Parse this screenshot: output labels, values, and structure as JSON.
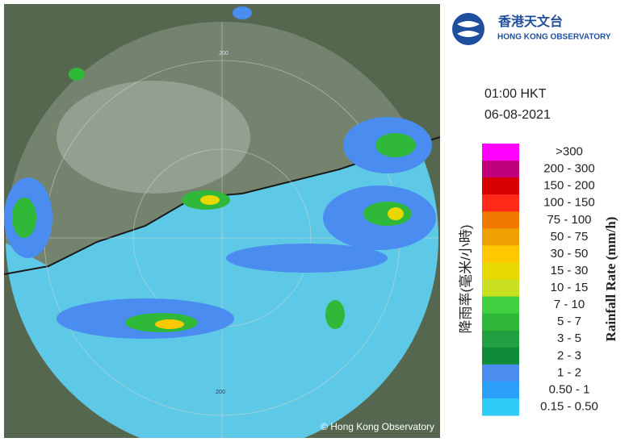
{
  "header": {
    "logo_chinese": "香港天文台",
    "logo_english": "HONG KONG OBSERVATORY"
  },
  "timestamp": {
    "time": "01:00 HKT",
    "date": "06-08-2021"
  },
  "map": {
    "ring_labels": [
      "200",
      "200"
    ],
    "copyright": "© Hong Kong Observatory"
  },
  "legend": {
    "title_chinese": "降雨率(毫米/小時)",
    "title_english": "Rainfall Rate (mm/h)",
    "items": [
      {
        "label": ">300",
        "color": "#ff00ff"
      },
      {
        "label": "200 - 300",
        "color": "#c0007a"
      },
      {
        "label": "150 - 200",
        "color": "#d80000"
      },
      {
        "label": "100 - 150",
        "color": "#ff2a1a"
      },
      {
        "label": "75 - 100",
        "color": "#f07800"
      },
      {
        "label": "50 - 75",
        "color": "#f0a000"
      },
      {
        "label": "30 - 50",
        "color": "#ffc800"
      },
      {
        "label": "15 - 30",
        "color": "#e8d800"
      },
      {
        "label": "10 - 15",
        "color": "#c8e020"
      },
      {
        "label": "7 - 10",
        "color": "#40d040"
      },
      {
        "label": "5 - 7",
        "color": "#30b838"
      },
      {
        "label": "3 - 5",
        "color": "#20a040"
      },
      {
        "label": "2 - 3",
        "color": "#108c38"
      },
      {
        "label": "1 - 2",
        "color": "#4a8cf0"
      },
      {
        "label": "0.50 - 1",
        "color": "#2aa0f8"
      },
      {
        "label": "0.15 - 0.50",
        "color": "#30ccf8"
      }
    ]
  }
}
